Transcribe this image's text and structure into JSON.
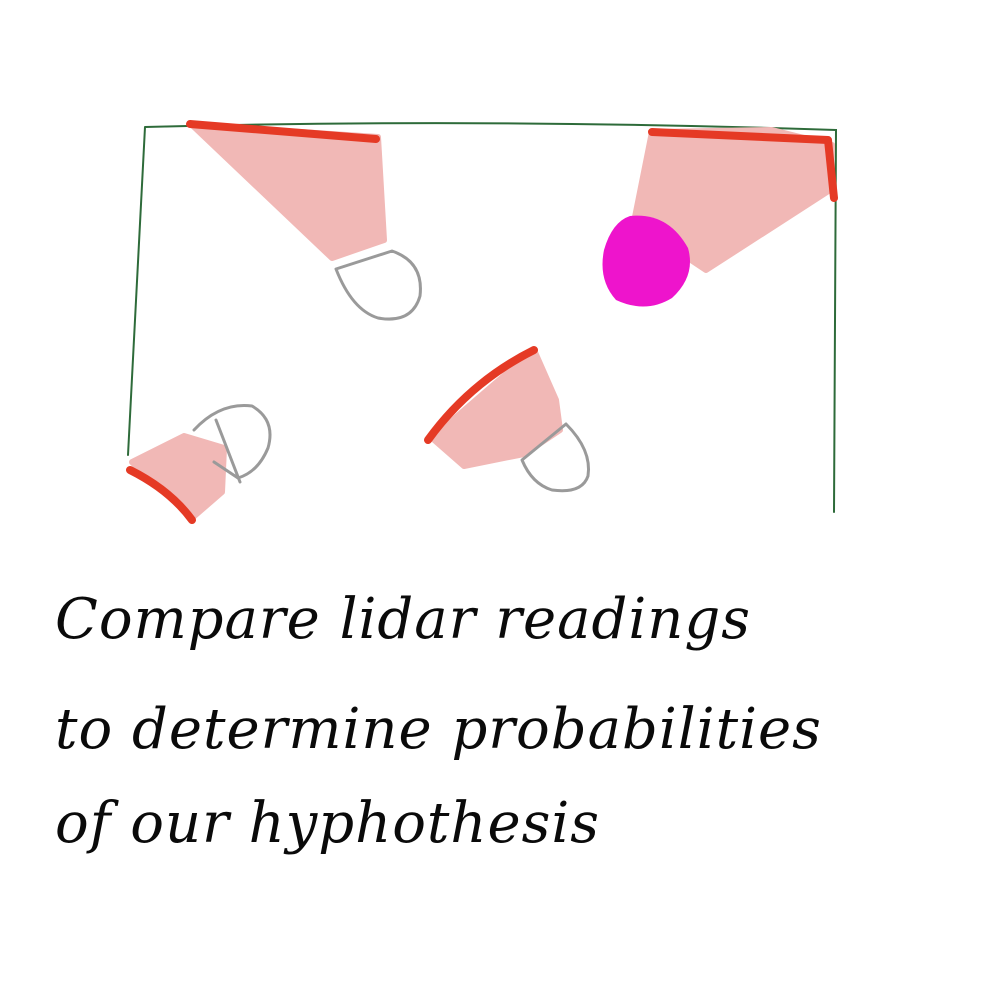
{
  "caption": {
    "line1": "Compare lidar readings",
    "line2": "to determine probabilities",
    "line3": "of our hyphothesis"
  },
  "colors": {
    "room_outline": "#2e6b3a",
    "cone_fill": "#f1b8b6",
    "cone_edge": "#e53a25",
    "robot": "#ee14cc",
    "sensor_cap": "#9a9a9a",
    "ink": "#0a0a0a"
  },
  "icons": [
    "room-outline",
    "lidar-sensor",
    "robot-blob"
  ]
}
